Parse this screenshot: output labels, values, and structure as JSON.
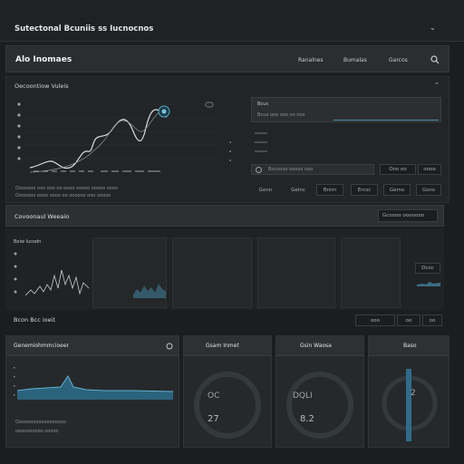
{
  "window": {
    "title": "Sutectonal Bcuniis ss Iucnocnos",
    "title_glyph": "⌄"
  },
  "header": {
    "app_title": "Alo Inomaes",
    "nav": [
      "Ranalnes",
      "Bumalas",
      "Garcos"
    ]
  },
  "section1": {
    "title": "Oecoontiow Vuleis",
    "title_glyph": "⌃",
    "chart_yticks": [
      "",
      "",
      "",
      "",
      "",
      "",
      ""
    ],
    "chart_xlabel": "Oooo ooo ooooo ooooooooo oooooooo",
    "chart_footer_1": "Ooooooo ooo ooo oo oooo ooooo ooooo oooo",
    "chart_footer_2": "Ooooooo oooo oooo oo oooooo ooo ooooo",
    "right_panel_title": "Bcus",
    "right_panel_sub": "Bcuo ooo ooo oo ooo",
    "right_panel_row": "Bocoooo ooooo ooo",
    "right_panel_buttons": [
      "Ooo oo",
      "oooo"
    ],
    "right_tabs": [
      "Gonn",
      "Gelnc",
      "Bnim",
      "Ercsc",
      "Gerns",
      "Gons"
    ]
  },
  "section2": {
    "title": "Covoonaul Weeaio",
    "dropdown": "Gcoooo ooooooo",
    "left_label": "Boiw Iucodn",
    "side_value": "Dcoc"
  },
  "section3": {
    "title": "Bcon Bcc ioeit",
    "controls": [
      "ooo",
      "oo",
      "oo"
    ]
  },
  "cards": [
    {
      "title": "Genemiohmmcioeer",
      "icon": "gauge-icon"
    },
    {
      "title": "Gsam Inmet",
      "center_top": "OC",
      "center_bottom": "27"
    },
    {
      "title": "Gsin Waosa",
      "center_top": "DQLI",
      "center_bottom": "8.2"
    },
    {
      "title": "Baso",
      "center_top": "2"
    }
  ],
  "card1_footer": [
    "Oooooooooooooooooo",
    "oooooooooo ooooo"
  ],
  "colors": {
    "accent": "#4a8fb0",
    "bg": "#1b1e1f"
  }
}
